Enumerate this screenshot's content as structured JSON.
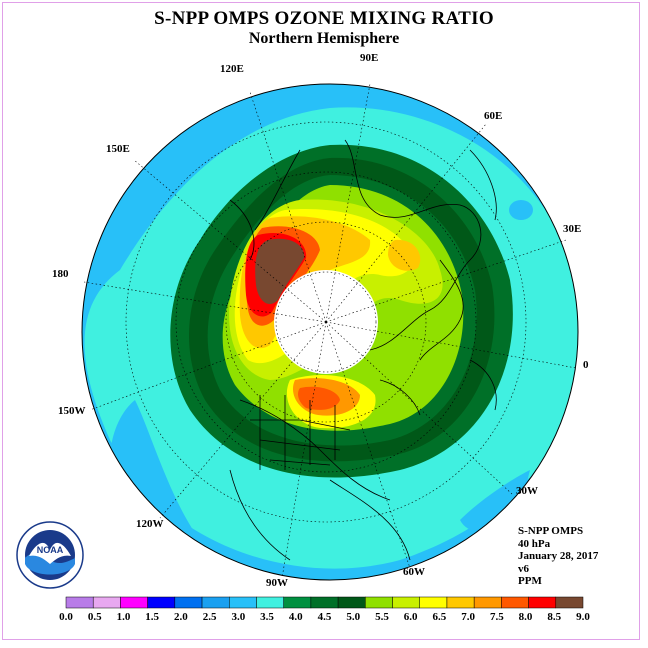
{
  "title": "S-NPP OMPS OZONE MIXING RATIO",
  "subtitle": "Northern Hemisphere",
  "info": {
    "instrument": "S-NPP OMPS",
    "level": "40 hPa",
    "date": "January 28, 2017",
    "version": "v6",
    "units": "PPM"
  },
  "logo_text": "NOAA",
  "longitude_labels": {
    "e90": "90E",
    "e120": "120E",
    "e60": "60E",
    "e150": "150E",
    "e30": "30E",
    "d180": "180",
    "d0": "0",
    "w150": "150W",
    "w30": "30W",
    "w120": "120W",
    "w60": "60W",
    "w90": "90W"
  },
  "colorbar": {
    "ticks": [
      "0.0",
      "0.5",
      "1.0",
      "1.5",
      "2.0",
      "2.5",
      "3.0",
      "3.5",
      "4.0",
      "4.5",
      "5.0",
      "5.5",
      "6.0",
      "6.5",
      "7.0",
      "7.5",
      "8.0",
      "8.5",
      "9.0"
    ],
    "colors": [
      "#b87ce8",
      "#e8a8f0",
      "#ff00ff",
      "#0000ff",
      "#0070f0",
      "#1aa0f0",
      "#28c0f8",
      "#40f0e0",
      "#009040",
      "#007028",
      "#005818",
      "#90e000",
      "#c8f000",
      "#ffff00",
      "#ffc800",
      "#ff9800",
      "#ff5800",
      "#ff0000",
      "#784830"
    ]
  },
  "colors": {
    "outer_ring": "#28c0f8",
    "mid": "#40f0e0",
    "dark_green": "#005818",
    "green": "#007028",
    "yellow": "#ffff00",
    "red": "#ff0000",
    "brown": "#784830"
  }
}
